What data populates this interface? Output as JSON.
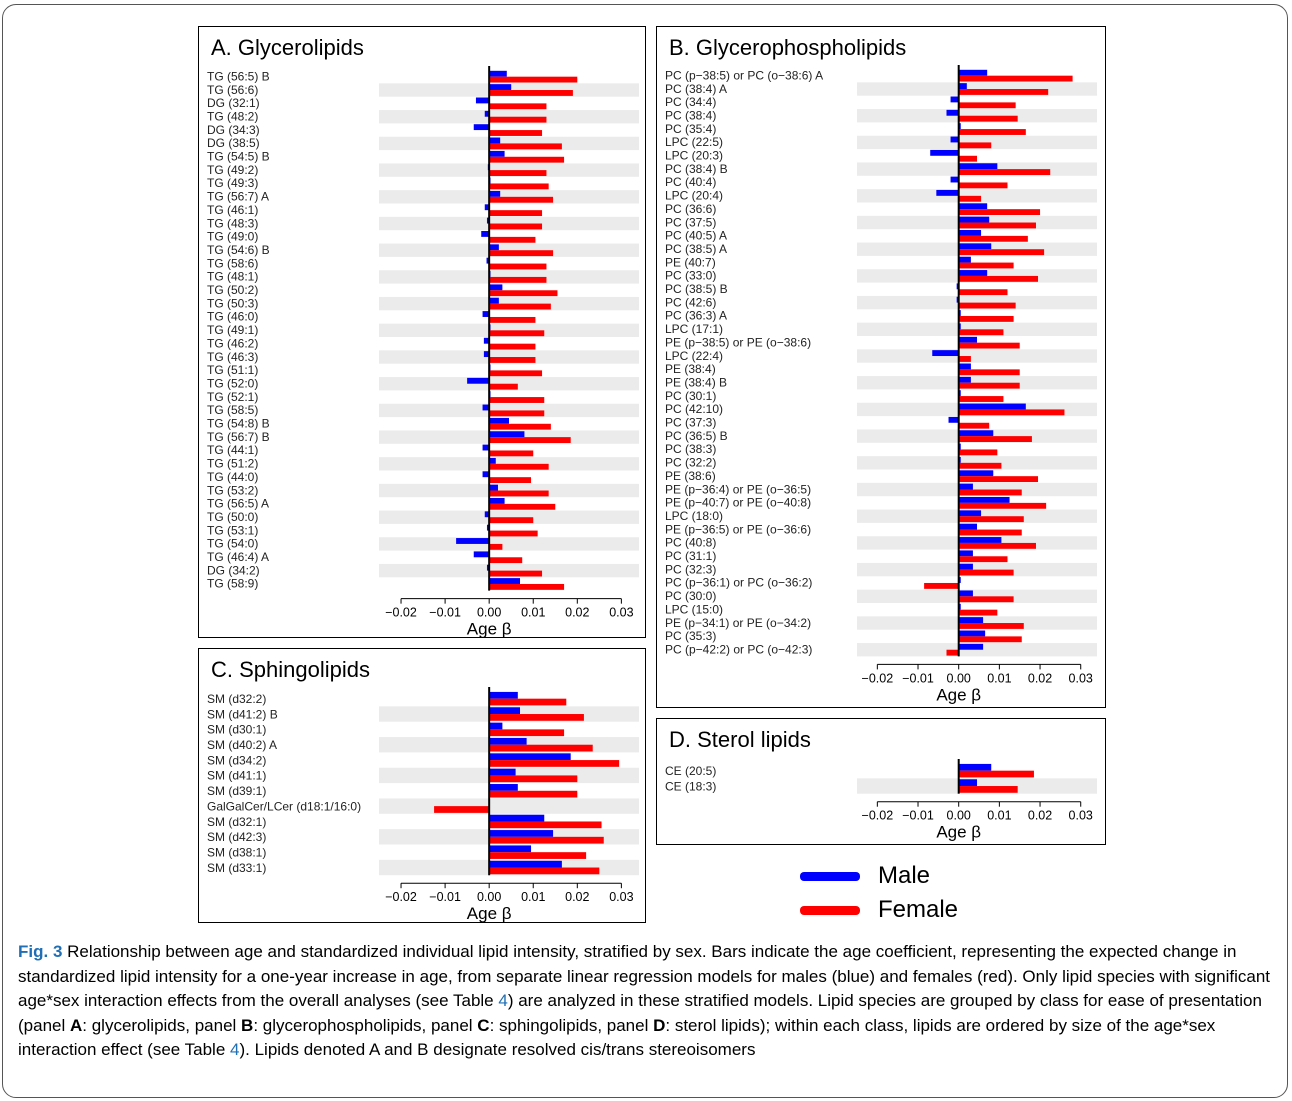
{
  "colors": {
    "male": "#0000ff",
    "female": "#ff0000",
    "stripe": "#ebebeb"
  },
  "legend": {
    "male_label": "Male",
    "female_label": "Female"
  },
  "caption": {
    "fig_label": "Fig. 3",
    "parts": [
      {
        "text": " Relationship between age and standardized individual lipid intensity, stratified by sex. Bars indicate the age coefficient, representing the expected change in standardized lipid intensity for a one-year increase in age, from separate linear regression models for males (blue) and females (red). Only lipid species with significant age*sex interaction effects from the overall analyses (see Table ",
        "style": "plain"
      },
      {
        "text": "4",
        "style": "blue"
      },
      {
        "text": ") are analyzed in these stratified models. Lipid species are grouped by class for ease of presentation (panel ",
        "style": "plain"
      },
      {
        "text": "A",
        "style": "bold"
      },
      {
        "text": ": glycerolipids, panel ",
        "style": "plain"
      },
      {
        "text": "B",
        "style": "bold"
      },
      {
        "text": ": glycerophospholipids, panel ",
        "style": "plain"
      },
      {
        "text": "C",
        "style": "bold"
      },
      {
        "text": ": sphingolipids, panel ",
        "style": "plain"
      },
      {
        "text": "D",
        "style": "bold"
      },
      {
        "text": ": sterol lipids); within each class, lipids are ordered by size of the age*sex interaction effect (see Table ",
        "style": "plain"
      },
      {
        "text": "4",
        "style": "blue"
      },
      {
        "text": "). Lipids denoted A and B designate resolved cis/trans stereoisomers",
        "style": "plain"
      }
    ]
  },
  "chart_data": [
    {
      "id": "A",
      "type": "bar",
      "orientation": "horizontal",
      "title": "A. Glycerolipids",
      "xlabel": "Age β",
      "xlim": [
        -0.025,
        0.034
      ],
      "xticks": [
        -0.02,
        -0.01,
        0.0,
        0.01,
        0.02,
        0.03
      ],
      "xtick_labels": [
        "−0.02",
        "−0.01",
        "0.00",
        "0.01",
        "0.02",
        "0.03"
      ],
      "categories": [
        "TG (56:5) B",
        "TG (56:6)",
        "DG (32:1)",
        "TG (48:2)",
        "DG (34:3)",
        "DG (38:5)",
        "TG (54:5) B",
        "TG (49:2)",
        "TG (49:3)",
        "TG (56:7) A",
        "TG (46:1)",
        "TG (48:3)",
        "TG (49:0)",
        "TG (54:6) B",
        "TG (58:6)",
        "TG (48:1)",
        "TG (50:2)",
        "TG (50:3)",
        "TG (46:0)",
        "TG (49:1)",
        "TG (46:2)",
        "TG (46:3)",
        "TG (51:1)",
        "TG (52:0)",
        "TG (52:1)",
        "TG (58:5)",
        "TG (54:8) B",
        "TG (56:7) B",
        "TG (44:1)",
        "TG (51:2)",
        "TG (44:0)",
        "TG (53:2)",
        "TG (56:5) A",
        "TG (50:0)",
        "TG (53:1)",
        "TG (54:0)",
        "TG (46:4) A",
        "DG (34:2)",
        "TG (58:9)"
      ],
      "series": [
        {
          "name": "Male",
          "values": [
            0.004,
            0.005,
            -0.003,
            -0.001,
            -0.0035,
            0.0025,
            0.0035,
            -0.0003,
            0.0003,
            0.0025,
            -0.001,
            -0.0005,
            -0.0018,
            0.0022,
            -0.0006,
            0.0003,
            0.003,
            0.0022,
            -0.0015,
            0.0003,
            -0.0012,
            -0.0012,
            0.0003,
            -0.005,
            0.0003,
            -0.0015,
            0.0045,
            0.008,
            -0.0015,
            0.0015,
            -0.0015,
            0.002,
            0.0035,
            -0.001,
            -0.0005,
            -0.0075,
            -0.0035,
            -0.0005,
            0.007
          ]
        },
        {
          "name": "Female",
          "values": [
            0.02,
            0.019,
            0.013,
            0.013,
            0.012,
            0.0165,
            0.017,
            0.013,
            0.0135,
            0.0145,
            0.012,
            0.012,
            0.0105,
            0.0145,
            0.013,
            0.013,
            0.0155,
            0.014,
            0.0105,
            0.0125,
            0.0105,
            0.0105,
            0.012,
            0.0065,
            0.0125,
            0.0125,
            0.014,
            0.0185,
            0.01,
            0.0135,
            0.0095,
            0.0135,
            0.015,
            0.01,
            0.011,
            0.003,
            0.0075,
            0.012,
            0.017
          ]
        }
      ]
    },
    {
      "id": "B",
      "type": "bar",
      "orientation": "horizontal",
      "title": "B. Glycerophospholipids",
      "xlabel": "Age β",
      "xlim": [
        -0.025,
        0.034
      ],
      "xticks": [
        -0.02,
        -0.01,
        0.0,
        0.01,
        0.02,
        0.03
      ],
      "xtick_labels": [
        "−0.02",
        "−0.01",
        "0.00",
        "0.01",
        "0.02",
        "0.03"
      ],
      "categories": [
        "PC (p−38:5) or PC (o−38:6) A",
        "PC (38:4) A",
        "PC (34:4)",
        "PC (38:4)",
        "PC (35:4)",
        "LPC (22:5)",
        "LPC (20:3)",
        "PC (38:4) B",
        "PC (40:4)",
        "LPC (20:4)",
        "PC (36:6)",
        "PC (37:5)",
        "PC (40:5) A",
        "PC (38:5) A",
        "PE (40:7)",
        "PC (33:0)",
        "PC (38:5) B",
        "PC (42:6)",
        "PC (36:3) A",
        "LPC (17:1)",
        "PE (p−38:5) or PE (o−38:6)",
        "LPC (22:4)",
        "PE (38:4)",
        "PE (38:4) B",
        "PC (30:1)",
        "PC (42:10)",
        "PC (37:3)",
        "PC (36:5) B",
        "PC (38:3)",
        "PC (32:2)",
        "PE (38:6)",
        "PE (p−36:4) or PE (o−36:5)",
        "PE (p−40:7) or PE (o−40:8)",
        "LPC (18:0)",
        "PE (p−36:5) or PE (o−36:6)",
        "PC (40:8)",
        "PC (31:1)",
        "PC (32:3)",
        "PC (p−36:1) or PC (o−36:2)",
        "PC (30:0)",
        "LPC (15:0)",
        "PE (p−34:1) or PE (o−34:2)",
        "PC (35:3)",
        "PC (p−42:2) or PC (o−42:3)"
      ],
      "series": [
        {
          "name": "Male",
          "values": [
            0.007,
            0.002,
            -0.002,
            -0.003,
            0.0005,
            -0.002,
            -0.007,
            0.0095,
            -0.002,
            -0.0055,
            0.007,
            0.0075,
            0.0055,
            0.008,
            0.003,
            0.007,
            -0.0005,
            -0.0005,
            0.0005,
            0.0005,
            0.0045,
            -0.0065,
            0.003,
            0.003,
            0.0005,
            0.0165,
            -0.0025,
            0.0085,
            0.0005,
            0.0005,
            0.0085,
            0.0035,
            0.0125,
            0.0055,
            0.0045,
            0.0105,
            0.0035,
            0.0035,
            0.0005,
            0.0035,
            0.0005,
            0.006,
            0.0065,
            0.006
          ]
        },
        {
          "name": "Female",
          "values": [
            0.028,
            0.022,
            0.014,
            0.0145,
            0.0165,
            0.008,
            0.0045,
            0.0225,
            0.012,
            0.0055,
            0.02,
            0.019,
            0.017,
            0.021,
            0.0135,
            0.0195,
            0.012,
            0.014,
            0.0135,
            0.011,
            0.015,
            0.003,
            0.015,
            0.015,
            0.011,
            0.026,
            0.0075,
            0.018,
            0.0095,
            0.0105,
            0.0195,
            0.0155,
            0.0215,
            0.016,
            0.0155,
            0.019,
            0.012,
            0.0135,
            -0.0085,
            0.0135,
            0.0095,
            0.016,
            0.0155,
            -0.003
          ]
        }
      ]
    },
    {
      "id": "C",
      "type": "bar",
      "orientation": "horizontal",
      "title": "C. Sphingolipids",
      "xlabel": "Age β",
      "xlim": [
        -0.025,
        0.034
      ],
      "xticks": [
        -0.02,
        -0.01,
        0.0,
        0.01,
        0.02,
        0.03
      ],
      "xtick_labels": [
        "−0.02",
        "−0.01",
        "0.00",
        "0.01",
        "0.02",
        "0.03"
      ],
      "categories": [
        "SM (d32:2)",
        "SM (d41:2) B",
        "SM (d30:1)",
        "SM (d40:2) A",
        "SM (d34:2)",
        "SM (d41:1)",
        "SM (d39:1)",
        "GalGalCer/LCer (d18:1/16:0)",
        "SM (d32:1)",
        "SM (d42:3)",
        "SM (d38:1)",
        "SM (d33:1)"
      ],
      "series": [
        {
          "name": "Male",
          "values": [
            0.0065,
            0.007,
            0.003,
            0.0085,
            0.0185,
            0.006,
            0.0065,
            0.0,
            0.0125,
            0.0145,
            0.0095,
            0.0165
          ]
        },
        {
          "name": "Female",
          "values": [
            0.0175,
            0.0215,
            0.017,
            0.0235,
            0.0295,
            0.02,
            0.02,
            -0.0125,
            0.0255,
            0.026,
            0.022,
            0.025
          ]
        }
      ]
    },
    {
      "id": "D",
      "type": "bar",
      "orientation": "horizontal",
      "title": "D. Sterol lipids",
      "xlabel": "Age β",
      "xlim": [
        -0.025,
        0.034
      ],
      "xticks": [
        -0.02,
        -0.01,
        0.0,
        0.01,
        0.02,
        0.03
      ],
      "xtick_labels": [
        "−0.02",
        "−0.01",
        "0.00",
        "0.01",
        "0.02",
        "0.03"
      ],
      "categories": [
        "CE (20:5)",
        "CE (18:3)"
      ],
      "series": [
        {
          "name": "Male",
          "values": [
            0.008,
            0.0045
          ]
        },
        {
          "name": "Female",
          "values": [
            0.0185,
            0.0145
          ]
        }
      ]
    }
  ]
}
